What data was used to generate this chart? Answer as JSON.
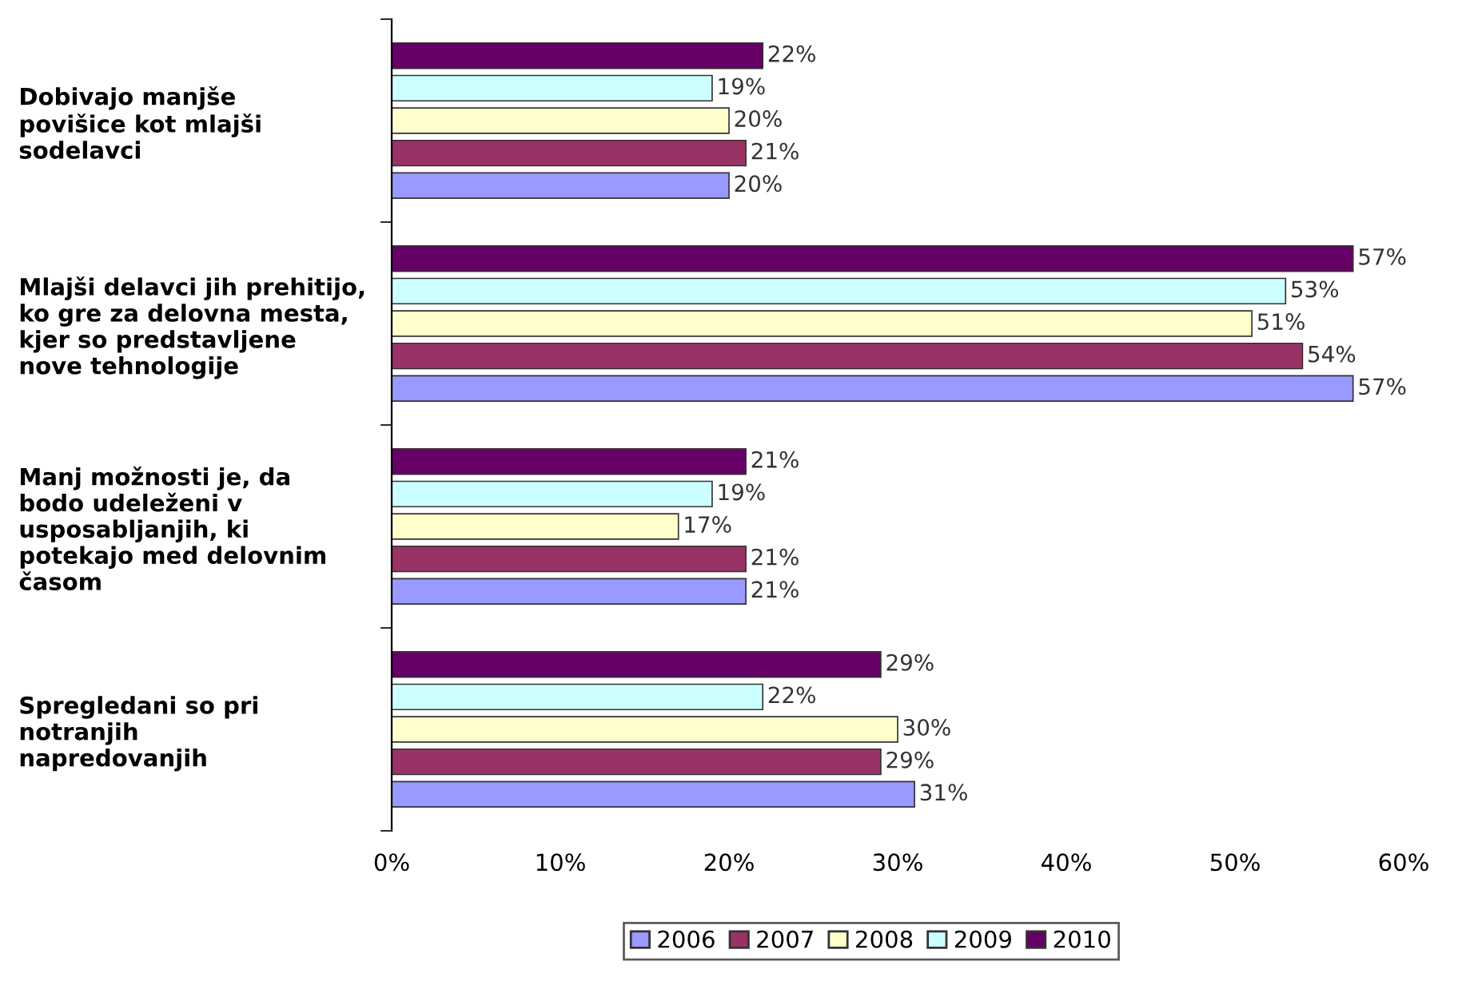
{
  "chart_data": {
    "type": "bar",
    "orientation": "horizontal",
    "categories": [
      "Dobivajo manjše\npovišice kot mlajši\nsodelavci",
      "Mlajši delavci jih prehitijo,\nko gre za delovna mesta,\nkjer so predstavljene\nnove tehnologije",
      "Manj možnosti je, da\nbodo udeleženi v\nusposabljanjih, ki\npotekajo med delovnim\nčasom",
      "Spregledani so pri\nnotranjih\nnapredovanjih"
    ],
    "series": [
      {
        "name": "2006",
        "color": "#9999ff",
        "values": [
          20,
          57,
          21,
          31
        ],
        "value_labels": [
          "20%",
          "57%",
          "21%",
          "31%"
        ]
      },
      {
        "name": "2007",
        "color": "#993366",
        "values": [
          21,
          54,
          21,
          29
        ],
        "value_labels": [
          "21%",
          "54%",
          "21%",
          "29%"
        ]
      },
      {
        "name": "2008",
        "color": "#ffffcc",
        "values": [
          20,
          51,
          17,
          30
        ],
        "value_labels": [
          "20%",
          "51%",
          "17%",
          "30%"
        ]
      },
      {
        "name": "2009",
        "color": "#ccffff",
        "values": [
          19,
          53,
          19,
          22
        ],
        "value_labels": [
          "19%",
          "53%",
          "19%",
          "22%"
        ]
      },
      {
        "name": "2010",
        "color": "#660066",
        "values": [
          22,
          57,
          21,
          29
        ],
        "value_labels": [
          "22%",
          "57%",
          "21%",
          "29%"
        ]
      }
    ],
    "xlim": [
      0,
      60
    ],
    "xticks": [
      {
        "value": 0,
        "label": "0%"
      },
      {
        "value": 10,
        "label": "10%"
      },
      {
        "value": 20,
        "label": "20%"
      },
      {
        "value": 30,
        "label": "30%"
      },
      {
        "value": 40,
        "label": "40%"
      },
      {
        "value": 50,
        "label": "50%"
      },
      {
        "value": 60,
        "label": "60%"
      }
    ],
    "grid": false,
    "legend": "bottom"
  }
}
